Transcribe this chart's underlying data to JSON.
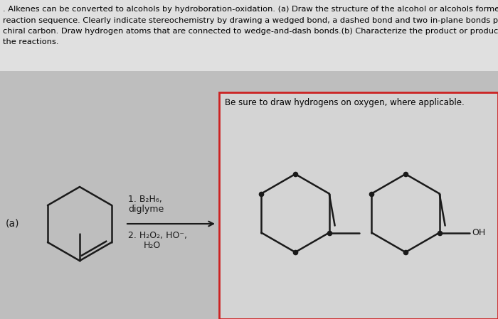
{
  "bg_color": "#bebebe",
  "header_bg": "#e0e0e0",
  "answer_box_bg": "#d4d4d4",
  "answer_box_border": "#cc2222",
  "text_color": "#000000",
  "line_color": "#1a1a1a",
  "header_text_line1": ". Alkenes can be converted to alcohols by hydroboration-oxidation. (a) Draw the structure of the alcohol or alcohols formed in th",
  "header_text_line2": "reaction sequence. Clearly indicate stereochemistry by drawing a wedged bond, a dashed bond and two in-plane bonds per each",
  "header_text_line3": "chiral carbon. Draw hydrogen atoms that are connected to wedge-and-dash bonds.(b) Characterize the product or products of",
  "header_text_line4": "the reactions.",
  "answer_hint": "Be sure to draw hydrogens on oxygen, where applicable.",
  "label_a": "(a)",
  "reagent1": "1. B₂H₆,",
  "reagent1b": "diglyme",
  "reagent2": "2. H₂O₂, HO⁻,",
  "reagent2b": "H₂O",
  "oh_label": "OH",
  "fig_width": 7.0,
  "fig_height": 4.49,
  "dpi": 100
}
